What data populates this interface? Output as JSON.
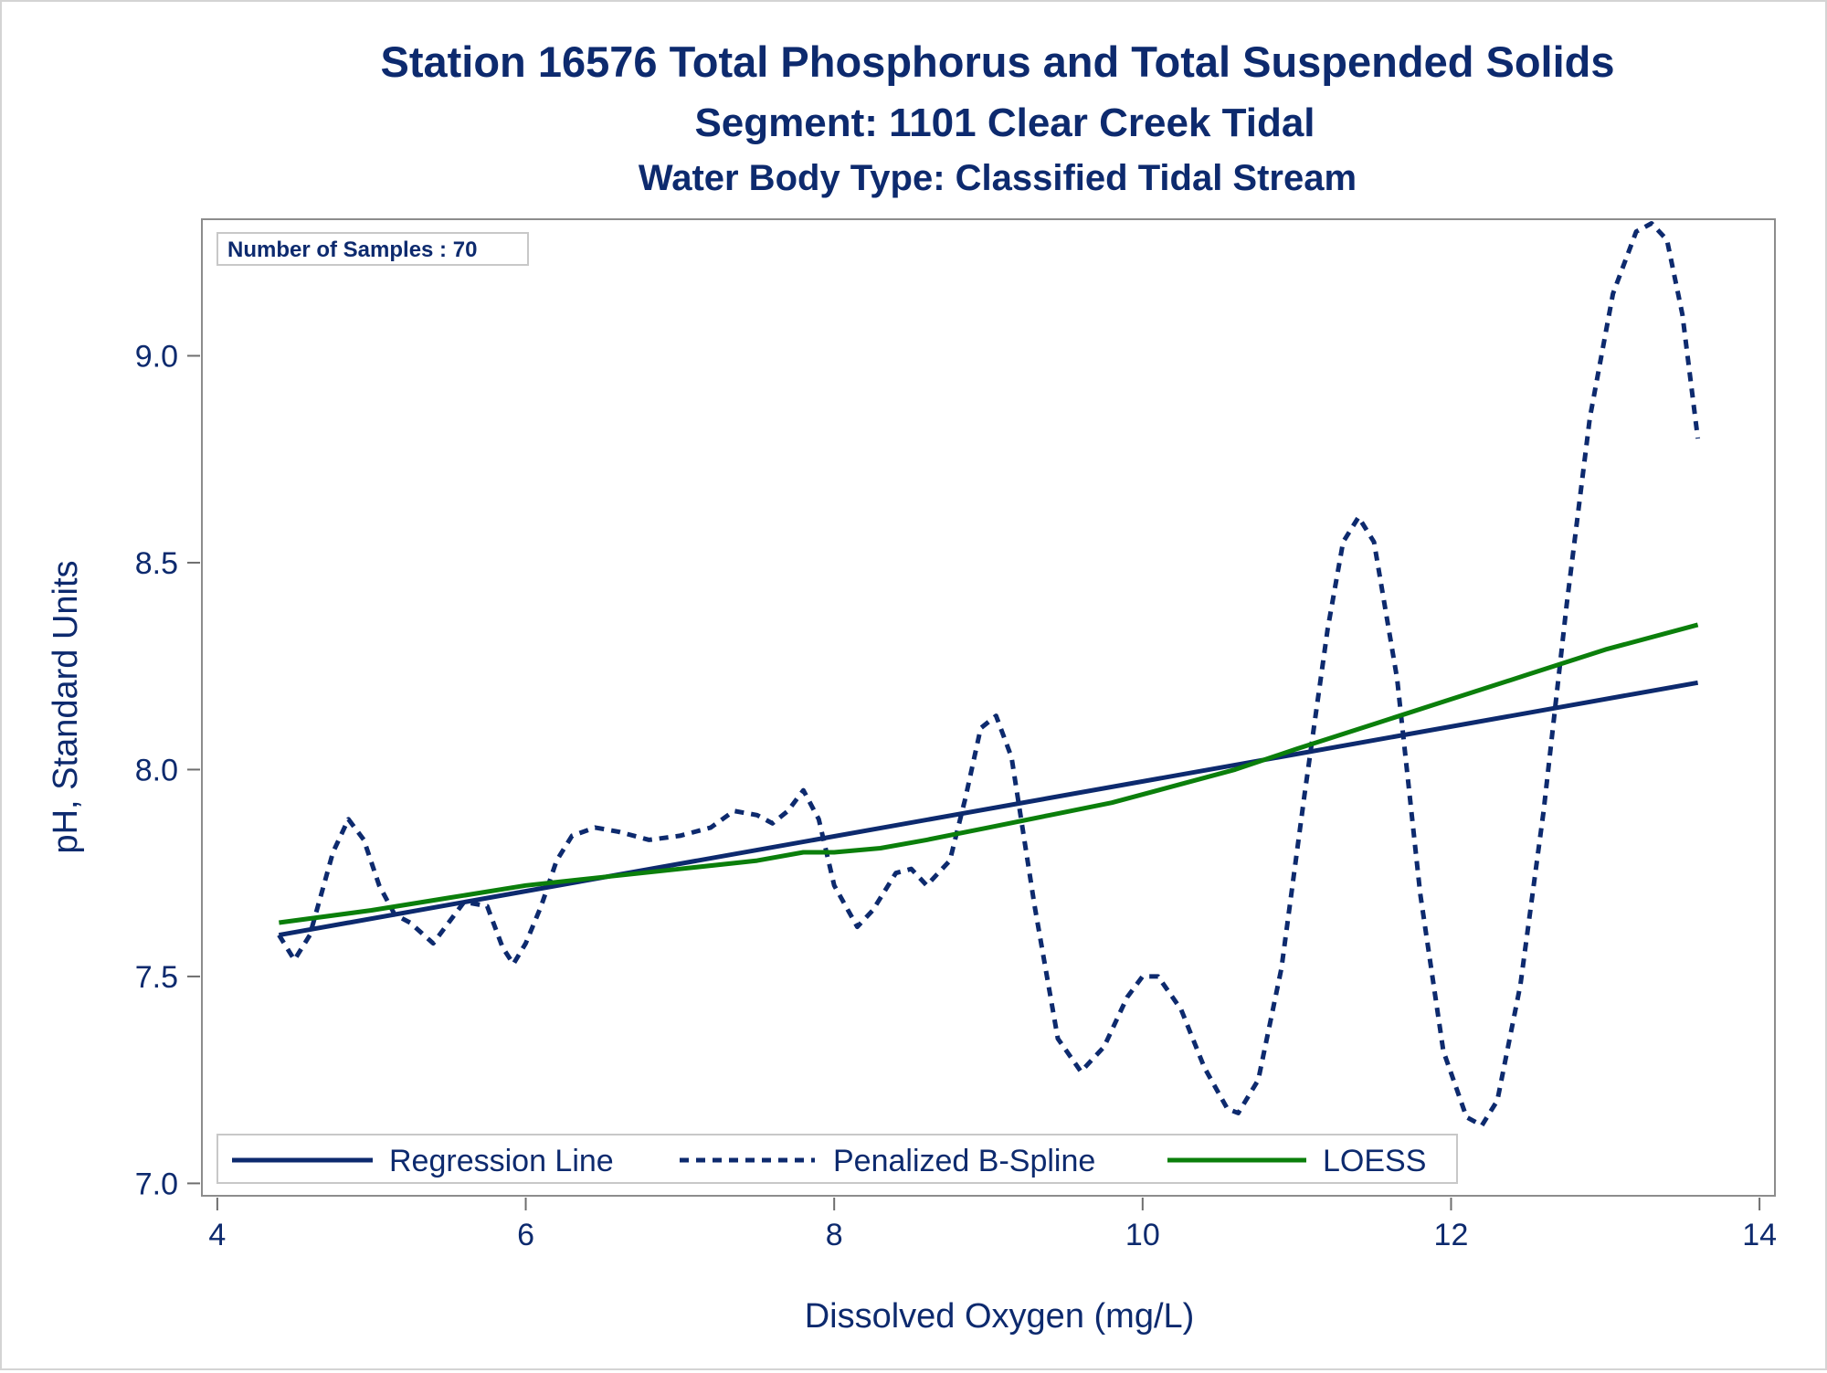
{
  "chart_data": {
    "type": "line",
    "title": "Station 16576  Total Phosphorus and Total Suspended Solids",
    "subtitle": "Segment: 1101  Clear Creek Tidal",
    "subtitle2": "Water Body Type: Classified Tidal Stream",
    "xlabel": "Dissolved Oxygen (mg/L)",
    "ylabel": "pH, Standard Units",
    "xlim": [
      3.9,
      14.1
    ],
    "ylim": [
      6.97,
      9.33
    ],
    "x_ticks": [
      4,
      6,
      8,
      10,
      12,
      14
    ],
    "y_ticks": [
      7.0,
      7.5,
      8.0,
      8.5,
      9.0
    ],
    "x_tick_labels": [
      "4",
      "6",
      "8",
      "10",
      "12",
      "14"
    ],
    "y_tick_labels": [
      "7.0",
      "7.5",
      "8.0",
      "8.5",
      "9.0"
    ],
    "inset_label": "Number of Samples : 70",
    "grid": false,
    "legend_position": "bottom-left inside",
    "series": [
      {
        "name": "Regression Line",
        "style": "solid",
        "color": "#0d2a6e",
        "points": [
          [
            4.4,
            7.6
          ],
          [
            13.6,
            8.21
          ]
        ]
      },
      {
        "name": "Penalized B-Spline",
        "style": "dashed",
        "color": "#0d2a6e",
        "points": [
          [
            4.4,
            7.6
          ],
          [
            4.5,
            7.54
          ],
          [
            4.6,
            7.6
          ],
          [
            4.75,
            7.8
          ],
          [
            4.85,
            7.88
          ],
          [
            4.95,
            7.83
          ],
          [
            5.05,
            7.72
          ],
          [
            5.15,
            7.65
          ],
          [
            5.25,
            7.63
          ],
          [
            5.4,
            7.58
          ],
          [
            5.5,
            7.63
          ],
          [
            5.6,
            7.68
          ],
          [
            5.75,
            7.67
          ],
          [
            5.85,
            7.57
          ],
          [
            5.92,
            7.53
          ],
          [
            6.0,
            7.58
          ],
          [
            6.1,
            7.67
          ],
          [
            6.2,
            7.78
          ],
          [
            6.3,
            7.84
          ],
          [
            6.45,
            7.86
          ],
          [
            6.6,
            7.85
          ],
          [
            6.8,
            7.83
          ],
          [
            7.0,
            7.84
          ],
          [
            7.2,
            7.86
          ],
          [
            7.35,
            7.9
          ],
          [
            7.5,
            7.89
          ],
          [
            7.6,
            7.87
          ],
          [
            7.7,
            7.9
          ],
          [
            7.8,
            7.95
          ],
          [
            7.9,
            7.88
          ],
          [
            8.0,
            7.72
          ],
          [
            8.15,
            7.62
          ],
          [
            8.25,
            7.66
          ],
          [
            8.4,
            7.75
          ],
          [
            8.5,
            7.76
          ],
          [
            8.6,
            7.72
          ],
          [
            8.75,
            7.78
          ],
          [
            8.85,
            7.93
          ],
          [
            8.95,
            8.1
          ],
          [
            9.05,
            8.13
          ],
          [
            9.15,
            8.03
          ],
          [
            9.3,
            7.67
          ],
          [
            9.45,
            7.35
          ],
          [
            9.6,
            7.27
          ],
          [
            9.75,
            7.33
          ],
          [
            9.9,
            7.45
          ],
          [
            10.0,
            7.5
          ],
          [
            10.1,
            7.5
          ],
          [
            10.25,
            7.42
          ],
          [
            10.4,
            7.28
          ],
          [
            10.55,
            7.18
          ],
          [
            10.62,
            7.17
          ],
          [
            10.75,
            7.25
          ],
          [
            10.9,
            7.52
          ],
          [
            11.05,
            7.94
          ],
          [
            11.2,
            8.34
          ],
          [
            11.3,
            8.55
          ],
          [
            11.4,
            8.61
          ],
          [
            11.5,
            8.55
          ],
          [
            11.65,
            8.22
          ],
          [
            11.8,
            7.7
          ],
          [
            11.95,
            7.32
          ],
          [
            12.1,
            7.16
          ],
          [
            12.2,
            7.14
          ],
          [
            12.3,
            7.2
          ],
          [
            12.45,
            7.48
          ],
          [
            12.6,
            7.9
          ],
          [
            12.75,
            8.4
          ],
          [
            12.9,
            8.85
          ],
          [
            13.05,
            9.15
          ],
          [
            13.2,
            9.3
          ],
          [
            13.3,
            9.32
          ],
          [
            13.4,
            9.28
          ],
          [
            13.5,
            9.1
          ],
          [
            13.6,
            8.8
          ]
        ]
      },
      {
        "name": "LOESS",
        "style": "solid",
        "color": "#0b7f0b",
        "points": [
          [
            4.4,
            7.63
          ],
          [
            5.0,
            7.66
          ],
          [
            5.5,
            7.69
          ],
          [
            6.0,
            7.72
          ],
          [
            6.5,
            7.74
          ],
          [
            7.0,
            7.76
          ],
          [
            7.5,
            7.78
          ],
          [
            7.8,
            7.8
          ],
          [
            8.0,
            7.8
          ],
          [
            8.3,
            7.81
          ],
          [
            8.6,
            7.83
          ],
          [
            9.0,
            7.86
          ],
          [
            9.4,
            7.89
          ],
          [
            9.8,
            7.92
          ],
          [
            10.2,
            7.96
          ],
          [
            10.6,
            8.0
          ],
          [
            11.0,
            8.05
          ],
          [
            11.5,
            8.11
          ],
          [
            12.0,
            8.17
          ],
          [
            12.5,
            8.23
          ],
          [
            13.0,
            8.29
          ],
          [
            13.6,
            8.35
          ]
        ]
      }
    ]
  }
}
